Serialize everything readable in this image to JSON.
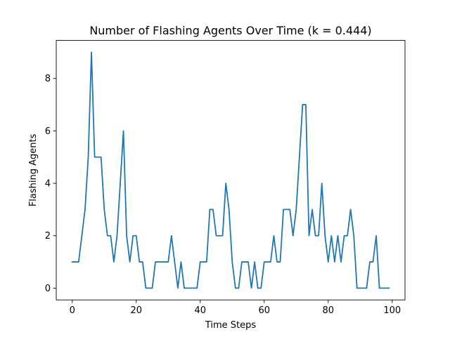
{
  "chart_data": {
    "type": "line",
    "title": "Number of Flashing Agents Over Time (k = 0.444)",
    "xlabel": "Time Steps",
    "ylabel": "Flashing Agents",
    "xlim": [
      -5,
      104
    ],
    "ylim": [
      -0.45,
      9.45
    ],
    "xticks": [
      0,
      20,
      40,
      60,
      80,
      100
    ],
    "yticks": [
      0,
      2,
      4,
      6,
      8
    ],
    "grid": false,
    "legend": "none",
    "colors": {
      "line": "#1f77b4",
      "axes": "#000000",
      "background": "#ffffff"
    },
    "series": [
      {
        "x": [
          0,
          1,
          2,
          3,
          4,
          5,
          6,
          7,
          8,
          9,
          10,
          11,
          12,
          13,
          14,
          15,
          16,
          17,
          18,
          19,
          20,
          21,
          22,
          23,
          24,
          25,
          26,
          27,
          28,
          29,
          30,
          31,
          32,
          33,
          34,
          35,
          36,
          37,
          38,
          39,
          40,
          41,
          42,
          43,
          44,
          45,
          46,
          47,
          48,
          49,
          50,
          51,
          52,
          53,
          54,
          55,
          56,
          57,
          58,
          59,
          60,
          61,
          62,
          63,
          64,
          65,
          66,
          67,
          68,
          69,
          70,
          71,
          72,
          73,
          74,
          75,
          76,
          77,
          78,
          79,
          80,
          81,
          82,
          83,
          84,
          85,
          86,
          87,
          88,
          89,
          90,
          91,
          92,
          93,
          94,
          95,
          96,
          97,
          98,
          99
        ],
        "y": [
          1,
          1,
          1,
          2,
          3,
          5,
          9,
          5,
          5,
          5,
          3,
          2,
          2,
          1,
          2,
          4,
          6,
          2,
          1,
          2,
          2,
          1,
          1,
          0,
          0,
          0,
          1,
          1,
          1,
          1,
          1,
          2,
          1,
          0,
          1,
          0,
          0,
          0,
          0,
          0,
          1,
          1,
          1,
          3,
          3,
          2,
          2,
          2,
          4,
          3,
          1,
          0,
          0,
          1,
          1,
          1,
          0,
          1,
          0,
          0,
          1,
          1,
          1,
          2,
          1,
          1,
          3,
          3,
          3,
          2,
          3,
          5,
          7,
          7,
          2,
          3,
          2,
          2,
          4,
          2,
          1,
          2,
          1,
          2,
          1,
          2,
          2,
          3,
          2,
          0,
          0,
          0,
          0,
          1,
          1,
          2,
          0,
          0,
          0,
          0
        ]
      }
    ]
  }
}
